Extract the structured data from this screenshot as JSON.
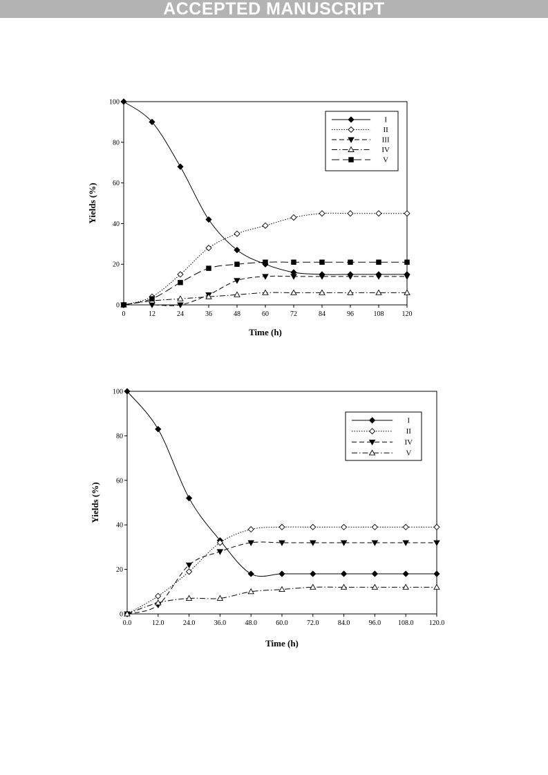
{
  "banner": "ACCEPTED MANUSCRIPT",
  "chart_data": [
    {
      "type": "line",
      "xlabel": "Time (h)",
      "ylabel": "Yields (%)",
      "x": [
        0,
        12,
        24,
        36,
        48,
        60,
        72,
        84,
        96,
        108,
        120
      ],
      "xticks": [
        "0",
        "12",
        "24",
        "36",
        "48",
        "60",
        "72",
        "84",
        "96",
        "108",
        "120"
      ],
      "yticks": [
        "0",
        "20",
        "40",
        "60",
        "80",
        "100"
      ],
      "xlim": [
        0,
        120
      ],
      "ylim": [
        0,
        100
      ],
      "legend_position": "top-right",
      "series": [
        {
          "name": "I",
          "marker": "diamond-filled",
          "dash": "solid",
          "values": [
            100,
            90,
            68,
            42,
            27,
            20,
            16,
            15,
            15,
            15,
            15
          ]
        },
        {
          "name": "II",
          "marker": "diamond-open",
          "dash": "dotted",
          "values": [
            0,
            4,
            15,
            28,
            35,
            39,
            43,
            45,
            45,
            45,
            45
          ]
        },
        {
          "name": "III",
          "marker": "triangle-down-filled",
          "dash": "dashed",
          "values": [
            0,
            0,
            0,
            5,
            12,
            14,
            14,
            14,
            14,
            14,
            14
          ]
        },
        {
          "name": "IV",
          "marker": "triangle-up-open",
          "dash": "dashdot",
          "values": [
            0,
            2,
            3,
            4,
            5,
            6,
            6,
            6,
            6,
            6,
            6
          ]
        },
        {
          "name": "V",
          "marker": "square-filled",
          "dash": "longdash",
          "values": [
            0,
            3,
            11,
            18,
            20,
            21,
            21,
            21,
            21,
            21,
            21
          ]
        }
      ]
    },
    {
      "type": "line",
      "xlabel": "Time (h)",
      "ylabel": "Yields (%)",
      "x": [
        0,
        12,
        24,
        36,
        48,
        60,
        72,
        84,
        96,
        108,
        120
      ],
      "xticks": [
        "0.0",
        "12.0",
        "24.0",
        "36.0",
        "48.0",
        "60.0",
        "72.0",
        "84.0",
        "96.0",
        "108.0",
        "120.0"
      ],
      "yticks": [
        "0",
        "20",
        "40",
        "60",
        "80",
        "100"
      ],
      "xlim": [
        0,
        120
      ],
      "ylim": [
        0,
        100
      ],
      "legend_position": "top-right",
      "series": [
        {
          "name": "I",
          "marker": "diamond-filled",
          "dash": "solid",
          "values": [
            100,
            83,
            52,
            33,
            18,
            18,
            18,
            18,
            18,
            18,
            18
          ]
        },
        {
          "name": "II",
          "marker": "diamond-open",
          "dash": "dotted",
          "values": [
            0,
            8,
            19,
            32,
            38,
            39,
            39,
            39,
            39,
            39,
            39
          ]
        },
        {
          "name": "IV",
          "marker": "triangle-down-filled",
          "dash": "dashed",
          "values": [
            0,
            4,
            22,
            28,
            32,
            32,
            32,
            32,
            32,
            32,
            32
          ]
        },
        {
          "name": "V",
          "marker": "triangle-up-open",
          "dash": "dashdot",
          "values": [
            0,
            5,
            7,
            7,
            10,
            11,
            12,
            12,
            12,
            12,
            12
          ]
        }
      ]
    }
  ]
}
